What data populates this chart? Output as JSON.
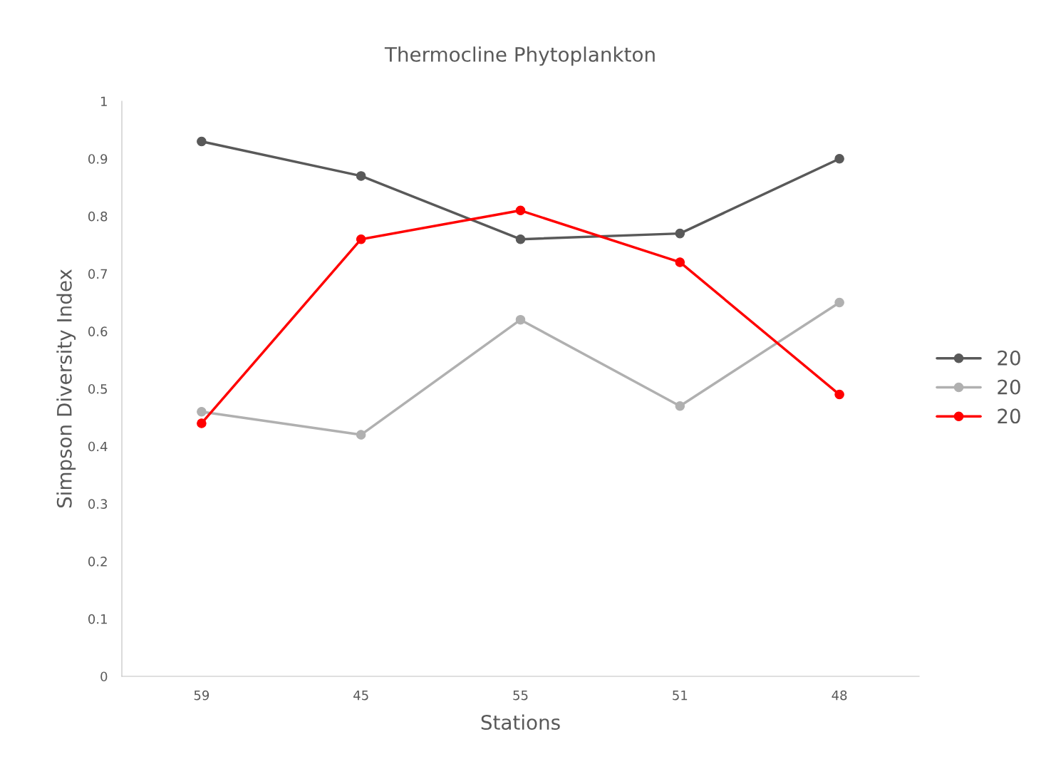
{
  "chart_data": {
    "type": "line",
    "title": "Thermocline Phytoplankton",
    "xlabel": "Stations",
    "ylabel": "Simpson Diversity Index",
    "categories": [
      "59",
      "45",
      "55",
      "51",
      "48"
    ],
    "series": [
      {
        "name": "20",
        "color": "#595959",
        "values": [
          0.93,
          0.87,
          0.76,
          0.77,
          0.9
        ]
      },
      {
        "name": "20",
        "color": "#b0b0b0",
        "values": [
          0.46,
          0.42,
          0.62,
          0.47,
          0.65
        ]
      },
      {
        "name": "20",
        "color": "#ff0000",
        "values": [
          0.44,
          0.76,
          0.81,
          0.72,
          0.49
        ]
      }
    ],
    "ylim": [
      0,
      1
    ],
    "yticks": [
      0,
      0.1,
      0.2,
      0.3,
      0.4,
      0.5,
      0.6,
      0.7,
      0.8,
      0.9,
      1
    ],
    "grid": false,
    "legend": "right",
    "marker": "circle",
    "line_style": "solid"
  }
}
